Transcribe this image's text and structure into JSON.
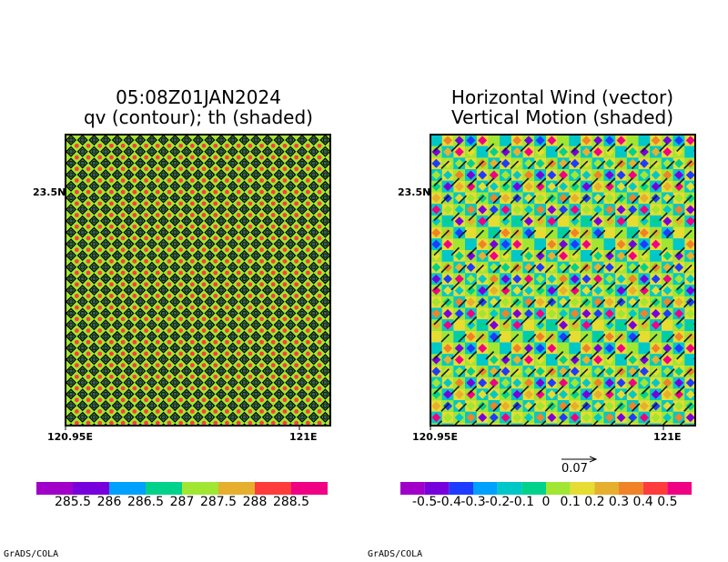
{
  "chart_data": [
    {
      "type": "heatmap",
      "title_lines": [
        "05:08Z01JAN2024",
        "qv (contour); th (shaded)"
      ],
      "x_tick_labels": [
        "120.95E",
        "121E"
      ],
      "y_tick_labels": [
        "23.5N"
      ],
      "colorbar": {
        "labels": [
          "285.5",
          "286",
          "286.5",
          "287",
          "287.5",
          "288",
          "288.5"
        ],
        "colors": [
          "#a000c8",
          "#7800dc",
          "#00a0ff",
          "#00d28c",
          "#a0e632",
          "#e6af2d",
          "#ff3c3c",
          "#f00082"
        ]
      },
      "field_colors": {
        "background": "#a0e632",
        "dots": "#ff3c3c",
        "contour": "#000000"
      }
    },
    {
      "type": "heatmap",
      "title_lines": [
        "Horizontal Wind (vector)",
        "Vertical Motion (shaded)"
      ],
      "x_tick_labels": [
        "120.95E",
        "121E"
      ],
      "y_tick_labels": [
        "23.5N"
      ],
      "vector_reference": {
        "label": "0.07"
      },
      "colorbar": {
        "labels": [
          "-0.5",
          "-0.4",
          "-0.3",
          "-0.2",
          "-0.1",
          "0",
          "0.1",
          "0.2",
          "0.3",
          "0.4",
          "0.5"
        ],
        "colors": [
          "#a000c8",
          "#7800dc",
          "#1e3cff",
          "#00a0ff",
          "#00c8c8",
          "#00d28c",
          "#a0e632",
          "#e6dc32",
          "#e6af2d",
          "#f08228",
          "#ff3c3c",
          "#f00082"
        ]
      },
      "field_colors": [
        "#00c8c8",
        "#a0e632",
        "#e6dc32",
        "#f00082",
        "#1e3cff",
        "#e6af2d",
        "#7800dc",
        "#f08228",
        "#00d28c"
      ]
    }
  ],
  "footer": {
    "left_credit": "GrADS/COLA",
    "right_credit": "GrADS/COLA"
  }
}
